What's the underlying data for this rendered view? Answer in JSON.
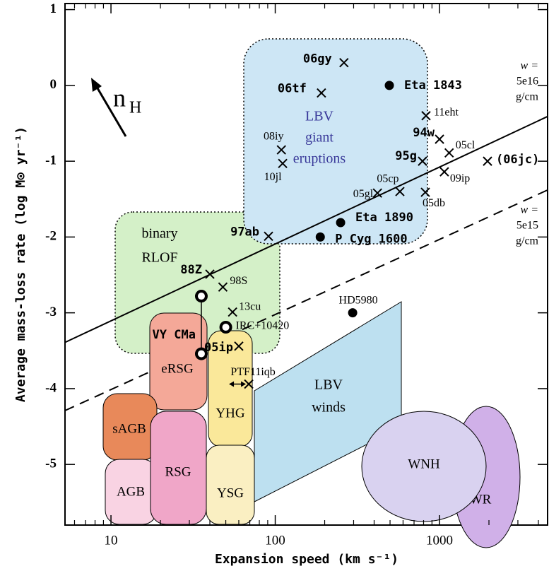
{
  "chart_data": {
    "type": "scatter",
    "xlabel": "Expansion speed (km s⁻¹)",
    "ylabel": "Average mass-loss rate (log M⊙ yr⁻¹)",
    "log_x": true,
    "xlim": [
      5.25,
      4550
    ],
    "ylim": [
      -5.8,
      1.08
    ],
    "xticks": [
      10,
      100,
      1000
    ],
    "xminor_ticks": [
      6,
      7,
      8,
      9,
      20,
      30,
      40,
      50,
      60,
      70,
      80,
      90,
      200,
      300,
      400,
      500,
      600,
      700,
      800,
      900,
      2000,
      3000,
      4000
    ],
    "yticks": [
      1,
      0,
      -1,
      -2,
      -3,
      -4,
      -5
    ],
    "annotation": {
      "main": "n",
      "sub": "H"
    },
    "lines": [
      {
        "x": [
          5.25,
          4550
        ],
        "y": [
          -3.39,
          -0.41
        ],
        "dash": false,
        "label": [
          "w =",
          "5e16",
          "g/cm"
        ]
      },
      {
        "x": [
          5.25,
          4550
        ],
        "y": [
          -4.29,
          -1.38
        ],
        "dash": true,
        "label": [
          "w =",
          "5e15",
          "g/cm"
        ]
      }
    ],
    "regions": [
      {
        "label": [
          "binary",
          "RLOF"
        ]
      },
      {
        "label": [
          "LBV",
          "giant",
          "eruptions"
        ]
      },
      {
        "label": [
          "eRSG"
        ]
      },
      {
        "label": [
          "sAGB"
        ]
      },
      {
        "label": [
          "AGB"
        ]
      },
      {
        "label": [
          "RSG"
        ]
      },
      {
        "label": [
          "YHG"
        ]
      },
      {
        "label": [
          "YSG"
        ]
      },
      {
        "label": [
          "LBV",
          "winds"
        ]
      },
      {
        "label": [
          "WR"
        ]
      },
      {
        "label": [
          "WNH"
        ]
      }
    ],
    "points": [
      {
        "label": "06gy",
        "x": 262,
        "y": 0.3,
        "marker": "cross",
        "bold": true
      },
      {
        "label": "06tf",
        "x": 191,
        "y": -0.1,
        "marker": "cross",
        "bold": true
      },
      {
        "label": "Eta 1843",
        "x": 495,
        "y": 0.0,
        "marker": "dot",
        "bold": true
      },
      {
        "label": "11eht",
        "x": 828,
        "y": -0.4,
        "marker": "cross",
        "bold": false
      },
      {
        "label": "94w",
        "x": 1000,
        "y": -0.71,
        "marker": "cross",
        "bold": true
      },
      {
        "label": "05cl",
        "x": 1145,
        "y": -0.89,
        "marker": "cross",
        "bold": false
      },
      {
        "label": "(06jc)",
        "x": 1960,
        "y": -1.0,
        "marker": "cross",
        "bold": true
      },
      {
        "label": "95g",
        "x": 788,
        "y": -1.0,
        "marker": "cross",
        "bold": true
      },
      {
        "label": "09ip",
        "x": 1070,
        "y": -1.14,
        "marker": "cross",
        "bold": false
      },
      {
        "label": "08iy",
        "x": 109,
        "y": -0.85,
        "marker": "cross",
        "bold": false
      },
      {
        "label": "10jl",
        "x": 111,
        "y": -1.03,
        "marker": "cross",
        "bold": false
      },
      {
        "label": "05cp",
        "x": 574,
        "y": -1.4,
        "marker": "cross",
        "bold": false
      },
      {
        "label": "05gl",
        "x": 419,
        "y": -1.42,
        "marker": "cross",
        "bold": false
      },
      {
        "label": "05db",
        "x": 820,
        "y": -1.41,
        "marker": "cross",
        "bold": false
      },
      {
        "label": "Eta 1890",
        "x": 250,
        "y": -1.81,
        "marker": "dot",
        "bold": true
      },
      {
        "label": "P Cyg 1600",
        "x": 188,
        "y": -2.0,
        "marker": "dot",
        "bold": true
      },
      {
        "label": "97ab",
        "x": 91,
        "y": -1.99,
        "marker": "cross",
        "bold": true
      },
      {
        "label": "88Z",
        "x": 40,
        "y": -2.49,
        "marker": "cross",
        "bold": true
      },
      {
        "label": "98S",
        "x": 48,
        "y": -2.66,
        "marker": "cross",
        "bold": false
      },
      {
        "label": "13cu",
        "x": 55,
        "y": -2.99,
        "marker": "cross",
        "bold": false
      },
      {
        "label": "HD5980",
        "x": 296,
        "y": -3.0,
        "marker": "dot",
        "bold": false
      },
      {
        "label": "IRC+10420",
        "x": 50,
        "y": -3.19,
        "marker": "open",
        "bold": false
      },
      {
        "label": "VY CMa",
        "x": 35.5,
        "y": -2.78,
        "y2": -3.54,
        "marker": "open",
        "bold": true
      },
      {
        "label": "05ip",
        "x": 60,
        "y": -3.44,
        "marker": "cross",
        "bold": true
      },
      {
        "label": "PTF11iqb",
        "x": 69,
        "y": -3.94,
        "marker": "cross",
        "bold": false
      }
    ]
  }
}
